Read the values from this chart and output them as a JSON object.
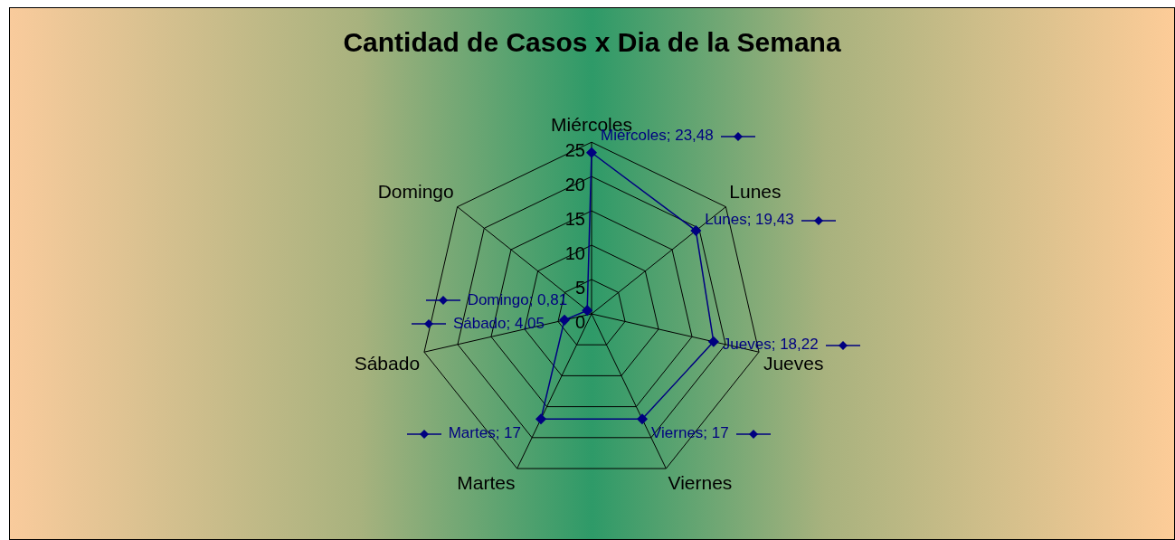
{
  "chart_data": {
    "type": "radar",
    "title": "Cantidad de Casos x Dia de la Semana",
    "categories": [
      "Miércoles",
      "Lunes",
      "Jueves",
      "Viernes",
      "Martes",
      "Sábado",
      "Domingo"
    ],
    "series": [
      {
        "color": "#000080",
        "values": [
          23.48,
          19.43,
          18.22,
          17,
          17,
          4.05,
          0.81
        ],
        "value_labels": [
          "Miércoles; 23,48",
          "Lunes; 19,43",
          "Jueves; 18,22",
          "Viernes; 17",
          "Martes; 17",
          "Sábado; 4,05",
          "Domingo; 0,81"
        ]
      }
    ],
    "ylim": [
      0,
      25
    ],
    "yticks": [
      0,
      5,
      10,
      15,
      20,
      25
    ],
    "grid": true,
    "marker": "diamond",
    "legend": false
  }
}
